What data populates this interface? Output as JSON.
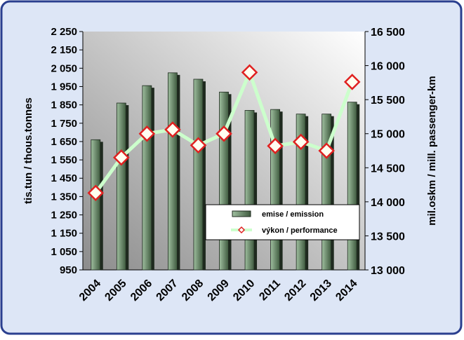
{
  "chart_data": {
    "type": "bar",
    "y_label": "tis.tun / thous.tonnes",
    "y2_label": "mil.oskm / mill. passenger-km",
    "categories": [
      "2004",
      "2005",
      "2006",
      "2007",
      "2008",
      "2009",
      "2010",
      "2011",
      "2012",
      "2013",
      "2014"
    ],
    "series": [
      {
        "name": "emise / emission",
        "type": "bar",
        "color": "#4f6b4f",
        "values": [
          1660,
          1860,
          1955,
          2025,
          1990,
          1920,
          1820,
          1825,
          1800,
          1800,
          1865
        ]
      },
      {
        "name": "výkon / performance",
        "type": "line",
        "axis": "y2",
        "color": "#ccffcc",
        "marker_color": "#e02020",
        "values": [
          14130,
          14650,
          15000,
          15060,
          14830,
          15000,
          15900,
          14820,
          14880,
          14750,
          15760
        ]
      }
    ],
    "ylim": [
      950,
      2250
    ],
    "yticks": [
      {
        "value": 950,
        "label": "950"
      },
      {
        "value": 1050,
        "label": "1 050"
      },
      {
        "value": 1150,
        "label": "1 150"
      },
      {
        "value": 1250,
        "label": "1 250"
      },
      {
        "value": 1350,
        "label": "1 350"
      },
      {
        "value": 1450,
        "label": "1 450"
      },
      {
        "value": 1550,
        "label": "1 550"
      },
      {
        "value": 1650,
        "label": "1 650"
      },
      {
        "value": 1750,
        "label": "1 750"
      },
      {
        "value": 1850,
        "label": "1 850"
      },
      {
        "value": 1950,
        "label": "1 950"
      },
      {
        "value": 2050,
        "label": "2 050"
      },
      {
        "value": 2150,
        "label": "2 150"
      },
      {
        "value": 2250,
        "label": "2 250"
      }
    ],
    "y2lim": [
      13000,
      16500
    ],
    "y2ticks": [
      {
        "value": 13000,
        "label": "13 000"
      },
      {
        "value": 13500,
        "label": "13 500"
      },
      {
        "value": 14000,
        "label": "14 000"
      },
      {
        "value": 14500,
        "label": "14 500"
      },
      {
        "value": 15000,
        "label": "15 000"
      },
      {
        "value": 15500,
        "label": "15 500"
      },
      {
        "value": 16000,
        "label": "16 000"
      },
      {
        "value": 16500,
        "label": "16 500"
      }
    ],
    "legend": "lower-right"
  }
}
